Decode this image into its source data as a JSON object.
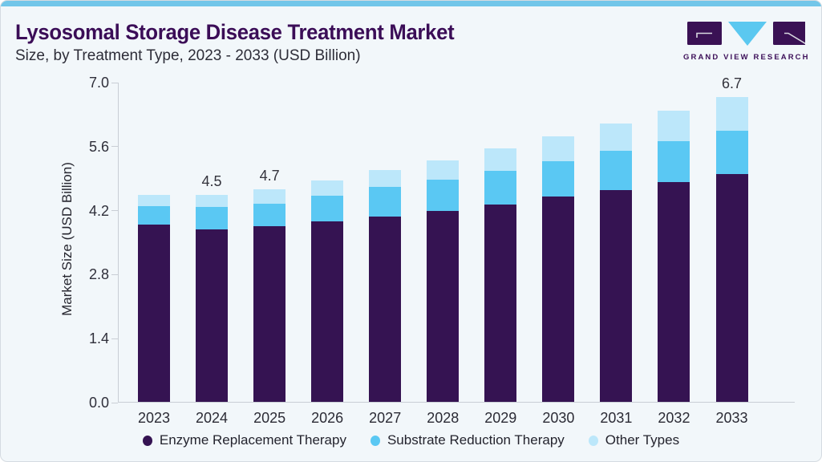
{
  "header": {
    "title": "Lysosomal Storage Disease Treatment Market",
    "subtitle": "Size, by Treatment Type, 2023 - 2033 (USD Billion)"
  },
  "logo": {
    "brand": "GRAND VIEW RESEARCH"
  },
  "colors": {
    "accent_strip": "#72c6e9",
    "title_purple": "#3b0d57",
    "axis_line": "#c9ced5"
  },
  "chart_data": {
    "type": "bar",
    "stacked": true,
    "title": "Lysosomal Storage Disease Treatment Market Size, by Treatment Type, 2023 - 2033 (USD Billion)",
    "categories": [
      "2023",
      "2024",
      "2025",
      "2026",
      "2027",
      "2028",
      "2029",
      "2030",
      "2031",
      "2032",
      "2033"
    ],
    "series": [
      {
        "name": "Enzyme Replacement Therapy",
        "color": "#351352",
        "values": [
          3.87,
          3.77,
          3.84,
          3.95,
          4.05,
          4.17,
          4.32,
          4.49,
          4.64,
          4.8,
          4.98
        ]
      },
      {
        "name": "Substrate Reduction Therapy",
        "color": "#5ac8f3",
        "values": [
          0.41,
          0.5,
          0.5,
          0.56,
          0.65,
          0.69,
          0.73,
          0.77,
          0.85,
          0.9,
          0.95
        ]
      },
      {
        "name": "Other Types",
        "color": "#bce7fa",
        "values": [
          0.24,
          0.25,
          0.31,
          0.34,
          0.37,
          0.43,
          0.5,
          0.55,
          0.6,
          0.67,
          0.73
        ]
      }
    ],
    "totals": [
      4.52,
      4.52,
      4.65,
      4.85,
      5.07,
      5.29,
      5.55,
      5.81,
      6.09,
      6.37,
      6.66
    ],
    "value_labels": {
      "2024": "4.5",
      "2025": "4.7",
      "2033": "6.7"
    },
    "xlabel": "",
    "ylabel": "Market Size (USD Billion)",
    "yticks": [
      "0.0",
      "1.4",
      "2.8",
      "4.2",
      "5.6",
      "7.0"
    ],
    "ylim": [
      0.0,
      7.0
    ],
    "grid": false,
    "legend_position": "bottom"
  }
}
